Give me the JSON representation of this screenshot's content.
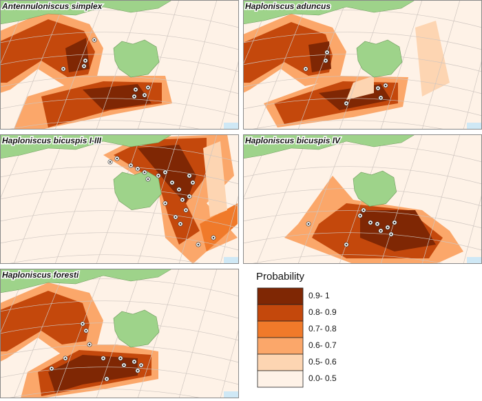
{
  "panels": [
    {
      "title": "Antennuloniscus simplex"
    },
    {
      "title": "Haploniscus aduncus"
    },
    {
      "title": "Haploniscus bicuspis I-III"
    },
    {
      "title": "Haploniscus bicuspis IV"
    },
    {
      "title": "Haploniscus foresti"
    }
  ],
  "legend": {
    "title": "Probability",
    "items": [
      {
        "label": "0.9- 1",
        "color": "#7f2704"
      },
      {
        "label": "0.8- 0.9",
        "color": "#c4480c"
      },
      {
        "label": "0.7- 0.8",
        "color": "#f07a2a"
      },
      {
        "label": "0.6- 0.7",
        "color": "#fba76a"
      },
      {
        "label": "0.5- 0.6",
        "color": "#fdd5b2"
      },
      {
        "label": "0.0- 0.5",
        "color": "#fef2e7"
      }
    ]
  }
}
